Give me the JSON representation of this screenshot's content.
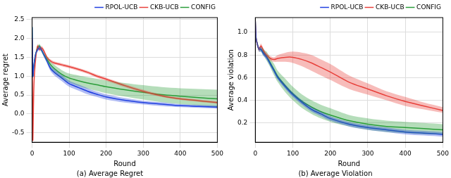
{
  "chart_data": [
    {
      "type": "line",
      "title": "(a) Average Regret",
      "x_label": "Round",
      "y_label": "Average regret",
      "xlim": [
        0,
        500
      ],
      "xticks": [
        0,
        100,
        200,
        300,
        400,
        500
      ],
      "ylim": [
        -0.75,
        2.55
      ],
      "yticks": [
        -0.5,
        {
          "value": 0,
          "label": "0.0"
        },
        0.5,
        {
          "value": 1,
          "label": "1.0"
        },
        1.5,
        {
          "value": 2,
          "label": "2.0"
        },
        2.5
      ],
      "grid": true,
      "legend": "upper right",
      "x": [
        0,
        2,
        5,
        10,
        15,
        20,
        25,
        30,
        40,
        50,
        60,
        80,
        100,
        125,
        150,
        175,
        200,
        250,
        300,
        350,
        400,
        450,
        500
      ],
      "series": [
        {
          "name": "RPOL-UCB",
          "color": "#1f3fe0",
          "values": [
            2.3,
            1.0,
            1.3,
            1.6,
            1.7,
            1.75,
            1.7,
            1.6,
            1.4,
            1.2,
            1.1,
            0.95,
            0.8,
            0.7,
            0.6,
            0.52,
            0.45,
            0.36,
            0.3,
            0.26,
            0.22,
            0.2,
            0.18
          ],
          "lower": [
            2.25,
            0.95,
            1.25,
            1.55,
            1.65,
            1.7,
            1.65,
            1.55,
            1.34,
            1.13,
            1.02,
            0.87,
            0.72,
            0.62,
            0.52,
            0.45,
            0.38,
            0.3,
            0.25,
            0.21,
            0.18,
            0.16,
            0.14
          ],
          "upper": [
            2.35,
            1.05,
            1.35,
            1.65,
            1.75,
            1.8,
            1.75,
            1.65,
            1.46,
            1.27,
            1.18,
            1.03,
            0.88,
            0.78,
            0.68,
            0.59,
            0.52,
            0.42,
            0.35,
            0.31,
            0.26,
            0.24,
            0.22
          ]
        },
        {
          "name": "CKB-UCB",
          "color": "#e8403a",
          "values": [
            2.0,
            -0.7,
            0.8,
            1.5,
            1.8,
            1.7,
            1.75,
            1.7,
            1.5,
            1.4,
            1.35,
            1.3,
            1.25,
            1.18,
            1.1,
            1.0,
            0.92,
            0.75,
            0.6,
            0.48,
            0.4,
            0.35,
            0.3
          ],
          "lower": [
            1.95,
            -0.75,
            0.75,
            1.45,
            1.75,
            1.65,
            1.7,
            1.65,
            1.46,
            1.36,
            1.31,
            1.26,
            1.21,
            1.14,
            1.06,
            0.96,
            0.88,
            0.71,
            0.56,
            0.45,
            0.37,
            0.32,
            0.27
          ],
          "upper": [
            2.05,
            -0.65,
            0.85,
            1.55,
            1.85,
            1.75,
            1.8,
            1.75,
            1.54,
            1.44,
            1.39,
            1.34,
            1.29,
            1.22,
            1.14,
            1.04,
            0.96,
            0.79,
            0.64,
            0.51,
            0.43,
            0.38,
            0.33
          ]
        },
        {
          "name": "CONFIG",
          "color": "#2a9d3a",
          "values": [
            2.3,
            1.0,
            1.3,
            1.6,
            1.75,
            1.8,
            1.7,
            1.6,
            1.45,
            1.3,
            1.2,
            1.05,
            0.95,
            0.88,
            0.82,
            0.77,
            0.72,
            0.64,
            0.57,
            0.51,
            0.47,
            0.43,
            0.4
          ],
          "lower": [
            2.25,
            0.95,
            1.25,
            1.55,
            1.7,
            1.75,
            1.65,
            1.55,
            1.38,
            1.21,
            1.1,
            0.94,
            0.83,
            0.74,
            0.67,
            0.61,
            0.55,
            0.46,
            0.38,
            0.31,
            0.26,
            0.22,
            0.18
          ],
          "upper": [
            2.35,
            1.05,
            1.35,
            1.65,
            1.8,
            1.85,
            1.75,
            1.65,
            1.52,
            1.39,
            1.3,
            1.16,
            1.07,
            1.02,
            0.97,
            0.93,
            0.89,
            0.82,
            0.76,
            0.71,
            0.68,
            0.66,
            0.64
          ]
        }
      ]
    },
    {
      "type": "line",
      "title": "(b) Average Violation",
      "x_label": "Round",
      "y_label": "Average violation",
      "xlim": [
        0,
        500
      ],
      "xticks": [
        0,
        100,
        200,
        300,
        400,
        500
      ],
      "ylim": [
        0.03,
        1.13
      ],
      "yticks": [
        0.2,
        0.4,
        0.6,
        0.8,
        {
          "value": 1,
          "label": "1.0"
        }
      ],
      "grid": true,
      "legend": "upper right",
      "x": [
        0,
        2,
        5,
        10,
        15,
        20,
        25,
        30,
        40,
        50,
        60,
        80,
        100,
        125,
        150,
        175,
        200,
        250,
        300,
        350,
        400,
        450,
        500
      ],
      "series": [
        {
          "name": "RPOL-UCB",
          "color": "#1f3fe0",
          "values": [
            1.1,
            0.95,
            0.9,
            0.85,
            0.85,
            0.82,
            0.8,
            0.78,
            0.72,
            0.66,
            0.6,
            0.52,
            0.45,
            0.38,
            0.32,
            0.28,
            0.24,
            0.19,
            0.16,
            0.14,
            0.12,
            0.11,
            0.1
          ],
          "lower": [
            1.08,
            0.93,
            0.88,
            0.83,
            0.83,
            0.8,
            0.78,
            0.76,
            0.7,
            0.64,
            0.58,
            0.5,
            0.43,
            0.36,
            0.3,
            0.26,
            0.22,
            0.17,
            0.14,
            0.12,
            0.1,
            0.09,
            0.08
          ],
          "upper": [
            1.12,
            0.97,
            0.92,
            0.87,
            0.87,
            0.84,
            0.82,
            0.8,
            0.74,
            0.68,
            0.62,
            0.54,
            0.47,
            0.4,
            0.34,
            0.3,
            0.26,
            0.21,
            0.18,
            0.16,
            0.14,
            0.13,
            0.12
          ]
        },
        {
          "name": "CKB-UCB",
          "color": "#e8403a",
          "values": [
            1.1,
            0.95,
            0.9,
            0.85,
            0.88,
            0.85,
            0.82,
            0.8,
            0.77,
            0.76,
            0.77,
            0.78,
            0.78,
            0.76,
            0.73,
            0.69,
            0.65,
            0.56,
            0.5,
            0.44,
            0.39,
            0.35,
            0.31
          ],
          "lower": [
            1.08,
            0.93,
            0.88,
            0.83,
            0.86,
            0.83,
            0.8,
            0.78,
            0.75,
            0.74,
            0.74,
            0.74,
            0.73,
            0.7,
            0.66,
            0.62,
            0.58,
            0.5,
            0.45,
            0.4,
            0.35,
            0.32,
            0.29
          ],
          "upper": [
            1.12,
            0.97,
            0.92,
            0.87,
            0.9,
            0.87,
            0.84,
            0.82,
            0.79,
            0.78,
            0.8,
            0.82,
            0.83,
            0.82,
            0.8,
            0.76,
            0.72,
            0.62,
            0.55,
            0.48,
            0.43,
            0.38,
            0.34
          ]
        },
        {
          "name": "CONFIG",
          "color": "#2a9d3a",
          "values": [
            1.1,
            0.95,
            0.9,
            0.85,
            0.85,
            0.83,
            0.81,
            0.79,
            0.73,
            0.67,
            0.61,
            0.53,
            0.46,
            0.39,
            0.34,
            0.3,
            0.27,
            0.22,
            0.19,
            0.17,
            0.16,
            0.15,
            0.14
          ],
          "lower": [
            1.08,
            0.93,
            0.88,
            0.83,
            0.83,
            0.8,
            0.78,
            0.75,
            0.69,
            0.62,
            0.56,
            0.47,
            0.4,
            0.33,
            0.28,
            0.24,
            0.21,
            0.17,
            0.14,
            0.12,
            0.11,
            0.1,
            0.1
          ],
          "upper": [
            1.12,
            0.97,
            0.92,
            0.87,
            0.87,
            0.86,
            0.84,
            0.83,
            0.77,
            0.72,
            0.66,
            0.59,
            0.52,
            0.45,
            0.4,
            0.36,
            0.33,
            0.27,
            0.24,
            0.22,
            0.21,
            0.2,
            0.19
          ]
        }
      ]
    }
  ]
}
